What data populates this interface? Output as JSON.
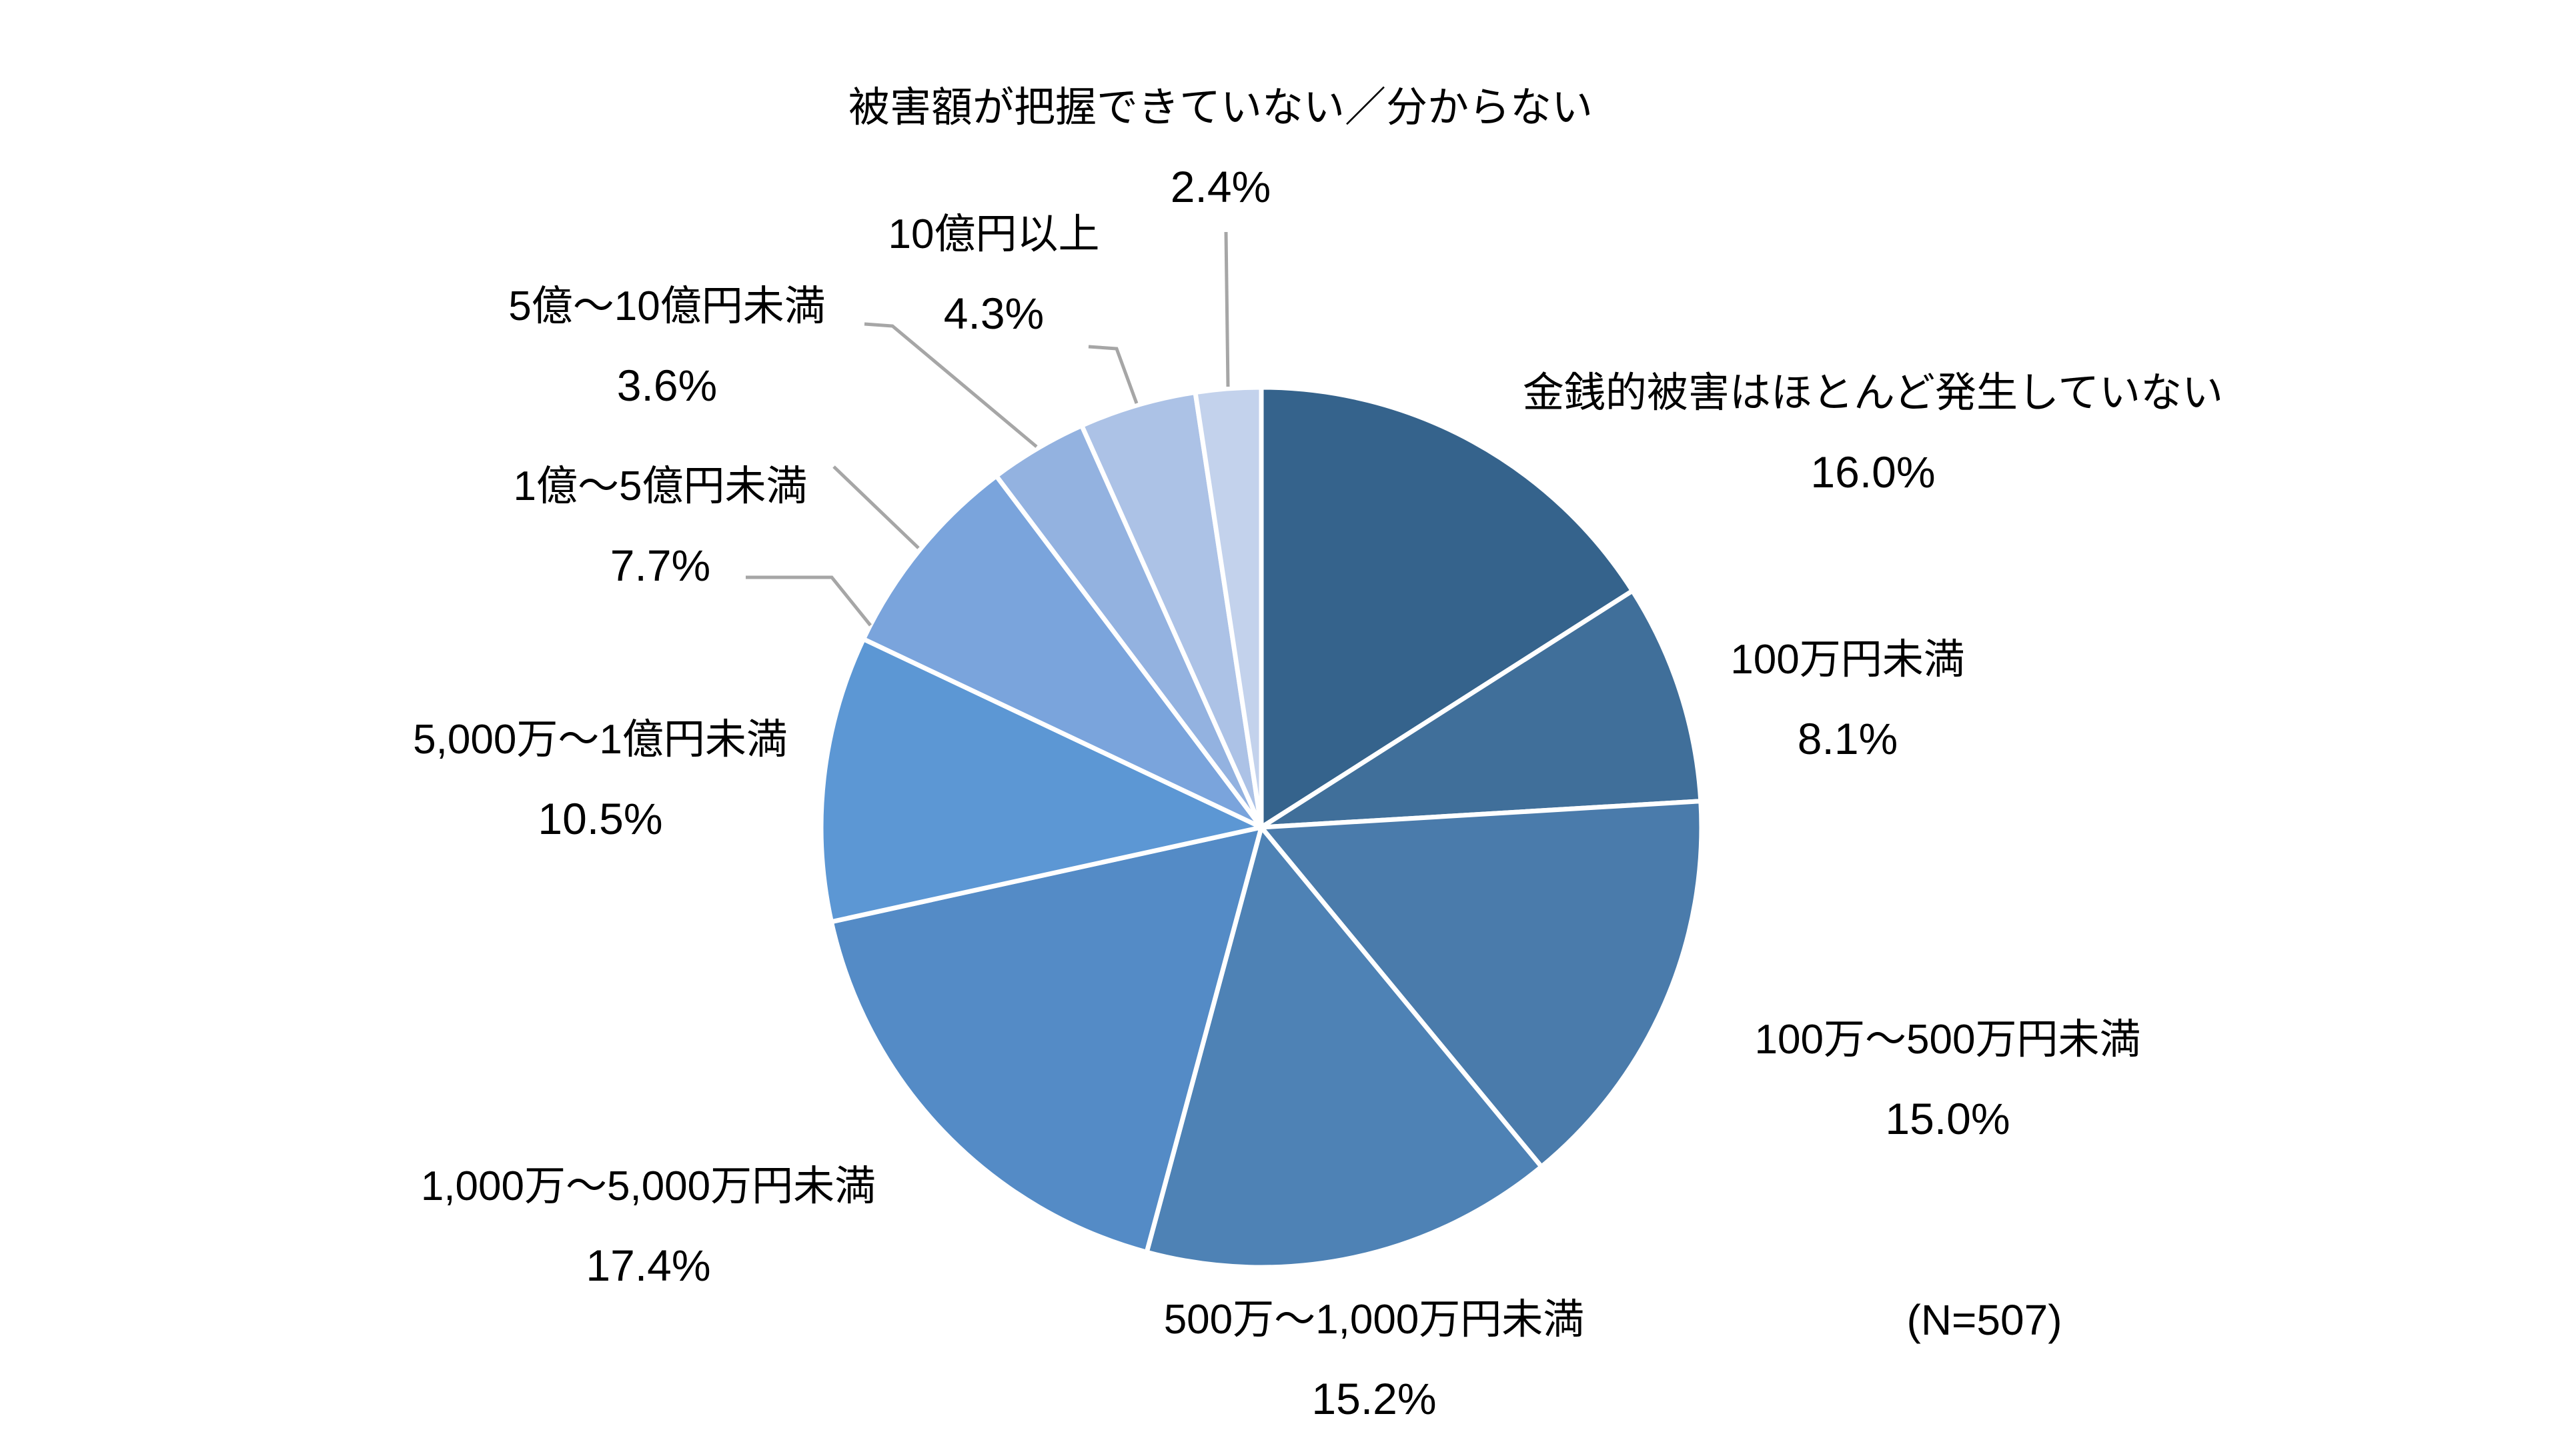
{
  "chart_data": {
    "type": "pie",
    "title": "",
    "sample_size_label": "(N=507)",
    "start_angle_deg": 0,
    "direction": "clockwise",
    "background_color": "#FFFFFF",
    "separator_color": "#FFFFFF",
    "leader_line_color": "#A6A6A6",
    "text_color": "#000000",
    "legend": "none",
    "slices": [
      {
        "label": "金銭的被害はほとんど発生していない",
        "pct_label": "16.0%",
        "value": 16.0,
        "color": "#35638C"
      },
      {
        "label": "100万円未満",
        "pct_label": "8.1%",
        "value": 8.1,
        "color": "#406F9A"
      },
      {
        "label": "100万～500万円未満",
        "pct_label": "15.0%",
        "value": 15.0,
        "color": "#4A7BAB"
      },
      {
        "label": "500万～1,000万円未満",
        "pct_label": "15.2%",
        "value": 15.2,
        "color": "#4E82B5"
      },
      {
        "label": "1,000万～5,000万円未満",
        "pct_label": "17.4%",
        "value": 17.4,
        "color": "#548BC6"
      },
      {
        "label": "5,000万～1億円未満",
        "pct_label": "10.5%",
        "value": 10.5,
        "color": "#5C97D4"
      },
      {
        "label": "1億～5億円未満",
        "pct_label": "7.7%",
        "value": 7.7,
        "color": "#7AA4DC"
      },
      {
        "label": "5億～10億円未満",
        "pct_label": "3.6%",
        "value": 3.6,
        "color": "#93B2E0"
      },
      {
        "label": "10億円以上",
        "pct_label": "4.3%",
        "value": 4.3,
        "color": "#ACC2E6"
      },
      {
        "label": "被害額が把握できていない／分からない",
        "pct_label": "2.4%",
        "value": 2.4,
        "color": "#C3D2EC"
      }
    ]
  }
}
